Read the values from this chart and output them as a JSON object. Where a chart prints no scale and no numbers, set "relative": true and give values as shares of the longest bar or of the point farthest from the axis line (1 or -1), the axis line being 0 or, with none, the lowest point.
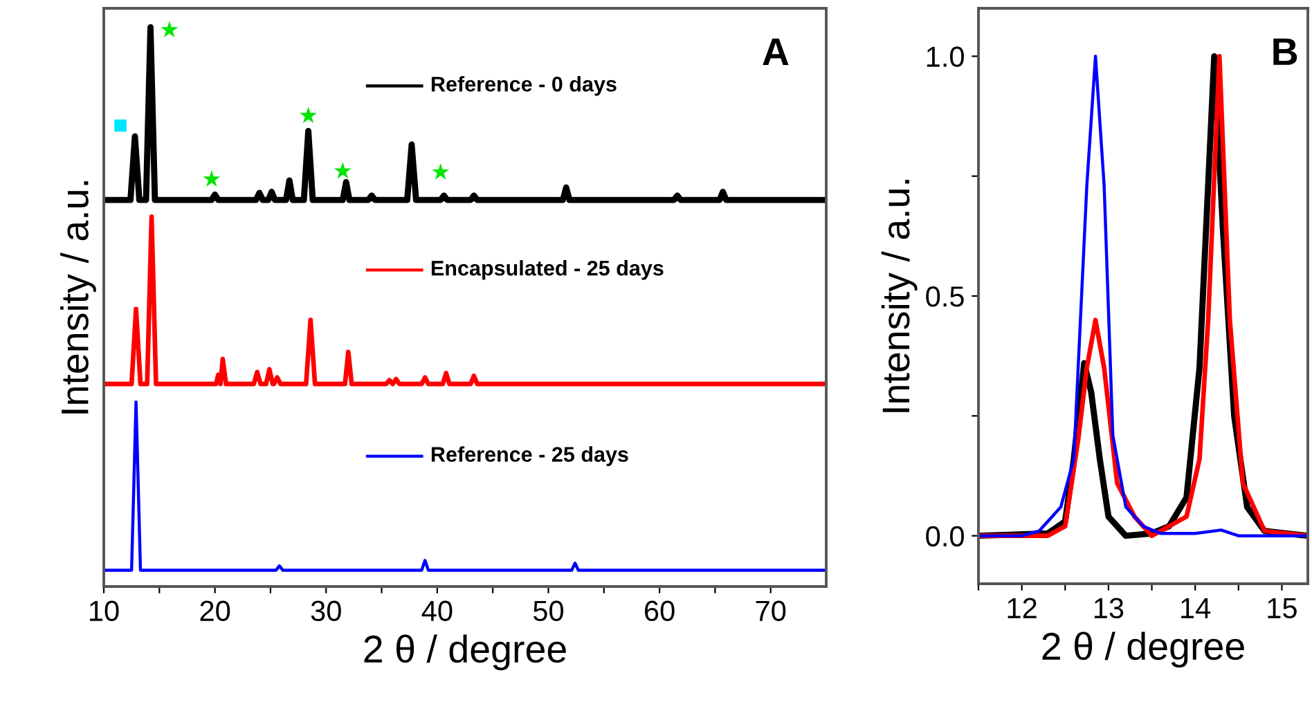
{
  "chart_data": [
    {
      "type": "line",
      "relative": true,
      "xlabel": "2 θ / degree",
      "ylabel": "Intensity / a.u.",
      "xlim": [
        10,
        75
      ],
      "xticks": [
        10,
        {
          "value": 15,
          "label": null
        },
        20,
        {
          "value": 25,
          "label": null
        },
        30,
        {
          "value": 35,
          "label": null
        },
        40,
        {
          "value": 45,
          "label": null
        },
        50,
        {
          "value": 55,
          "label": null
        },
        60,
        {
          "value": 65,
          "label": null
        },
        70
      ],
      "tick_labels": "x",
      "legend": "right",
      "grid": false,
      "annotations": [
        "A"
      ],
      "series": [
        {
          "name": "Reference - 0 days",
          "color": "#000000",
          "x": [
            10,
            12.4,
            12.8,
            13.2,
            13.8,
            14.2,
            14.6,
            19.7,
            20.0,
            20.3,
            23.7,
            24.0,
            24.3,
            24.8,
            25.1,
            25.4,
            26.4,
            26.7,
            27.0,
            28.0,
            28.4,
            28.8,
            31.5,
            31.8,
            32.1,
            33.8,
            34.1,
            34.4,
            37.3,
            37.7,
            38.1,
            40.3,
            40.6,
            40.9,
            43.0,
            43.3,
            43.6,
            51.3,
            51.6,
            51.9,
            61.3,
            61.6,
            61.9,
            65.4,
            65.7,
            66.0,
            75
          ],
          "values": [
            0.682,
            0.682,
            0.799,
            0.682,
            0.682,
            1.0,
            0.682,
            0.682,
            0.692,
            0.682,
            0.682,
            0.695,
            0.682,
            0.682,
            0.697,
            0.682,
            0.682,
            0.718,
            0.682,
            0.682,
            0.809,
            0.682,
            0.682,
            0.715,
            0.682,
            0.682,
            0.69,
            0.682,
            0.682,
            0.784,
            0.682,
            0.682,
            0.69,
            0.682,
            0.682,
            0.69,
            0.682,
            0.682,
            0.705,
            0.682,
            0.682,
            0.69,
            0.682,
            0.682,
            0.697,
            0.682,
            0.682
          ]
        },
        {
          "name": "Encapsulated - 25 days",
          "color": "#ff0000",
          "x": [
            10,
            12.5,
            12.9,
            13.3,
            13.9,
            14.3,
            14.7,
            20.1,
            20.3,
            20.5,
            20.7,
            21.0,
            23.5,
            23.8,
            24.1,
            24.6,
            24.9,
            25.2,
            25.3,
            25.6,
            25.9,
            28.2,
            28.6,
            29.0,
            31.7,
            32.0,
            32.3,
            35.4,
            35.7,
            36.0,
            36.3,
            36.6,
            38.6,
            38.9,
            39.2,
            40.5,
            40.8,
            41.1,
            43.0,
            43.3,
            43.6,
            75
          ],
          "values": [
            0.343,
            0.343,
            0.481,
            0.343,
            0.343,
            0.651,
            0.343,
            0.343,
            0.36,
            0.343,
            0.389,
            0.343,
            0.343,
            0.365,
            0.343,
            0.343,
            0.37,
            0.343,
            0.343,
            0.355,
            0.343,
            0.343,
            0.461,
            0.343,
            0.343,
            0.402,
            0.343,
            0.343,
            0.35,
            0.343,
            0.352,
            0.343,
            0.343,
            0.355,
            0.343,
            0.343,
            0.363,
            0.343,
            0.343,
            0.358,
            0.343,
            0.343
          ]
        },
        {
          "name": "Reference - 25 days",
          "color": "#0000ff",
          "x": [
            10,
            12.5,
            12.9,
            13.3,
            25.5,
            25.8,
            26.1,
            38.6,
            38.9,
            39.2,
            52.1,
            52.4,
            52.7,
            75
          ],
          "values": [
            0,
            0,
            0.31,
            0,
            0,
            0.008,
            0,
            0,
            0.018,
            0,
            0,
            0.013,
            0,
            0
          ]
        },
        {
          "type": "scatter",
          "marker": "star",
          "color": "#00e600",
          "x": [
            15.9,
            19.7,
            28.4,
            31.5,
            40.3
          ],
          "values": [
            0.995,
            0.72,
            0.837,
            0.735,
            0.733
          ]
        },
        {
          "type": "scatter",
          "marker": "square",
          "color": "#00e5ff",
          "x": [
            11.5
          ],
          "values": [
            0.819
          ]
        }
      ]
    },
    {
      "type": "line",
      "xlabel": "2 θ / degree",
      "ylabel": "Intensity / a.u.",
      "xlim": [
        11.5,
        15.3
      ],
      "xticks": [
        {
          "value": 11.5,
          "label": null
        },
        12,
        {
          "value": 12.5,
          "label": null
        },
        13,
        {
          "value": 13.5,
          "label": null
        },
        14,
        {
          "value": 14.5,
          "label": null
        },
        15
      ],
      "ylim": [
        -0.1,
        1.1
      ],
      "yticks": [
        {
          "value": 0,
          "label": "0.0"
        },
        {
          "value": 0.25,
          "label": null
        },
        0.5,
        {
          "value": 0.75,
          "label": null
        },
        {
          "value": 1,
          "label": "1.0"
        }
      ],
      "legend": false,
      "grid": false,
      "annotations": [
        "B"
      ],
      "series": [
        {
          "color": "#000000",
          "x": [
            11.5,
            12.3,
            12.5,
            12.6,
            12.72,
            12.8,
            12.9,
            13.0,
            13.2,
            13.5,
            13.7,
            13.9,
            14.05,
            14.22,
            14.32,
            14.45,
            14.6,
            14.8,
            15.3
          ],
          "values": [
            0,
            0.005,
            0.03,
            0.16,
            0.36,
            0.3,
            0.16,
            0.04,
            0,
            0.005,
            0.02,
            0.08,
            0.35,
            1.0,
            0.64,
            0.25,
            0.06,
            0.01,
            0
          ]
        },
        {
          "color": "#ff0000",
          "x": [
            11.5,
            12.3,
            12.5,
            12.65,
            12.75,
            12.85,
            12.95,
            13.1,
            13.3,
            13.5,
            13.7,
            13.9,
            14.05,
            14.15,
            14.28,
            14.4,
            14.55,
            14.8,
            15.3
          ],
          "values": [
            0,
            0,
            0.02,
            0.2,
            0.35,
            0.45,
            0.35,
            0.11,
            0.04,
            0,
            0.02,
            0.04,
            0.16,
            0.45,
            1.0,
            0.45,
            0.11,
            0.01,
            0
          ]
        },
        {
          "color": "#0000ff",
          "x": [
            11.5,
            12.0,
            12.2,
            12.45,
            12.6,
            12.75,
            12.85,
            12.95,
            13.05,
            13.2,
            13.4,
            13.6,
            14.0,
            14.3,
            14.5,
            15.3
          ],
          "values": [
            0,
            0,
            0.01,
            0.06,
            0.16,
            0.73,
            1.0,
            0.73,
            0.21,
            0.06,
            0.02,
            0.005,
            0.005,
            0.012,
            0,
            0
          ]
        }
      ]
    }
  ]
}
